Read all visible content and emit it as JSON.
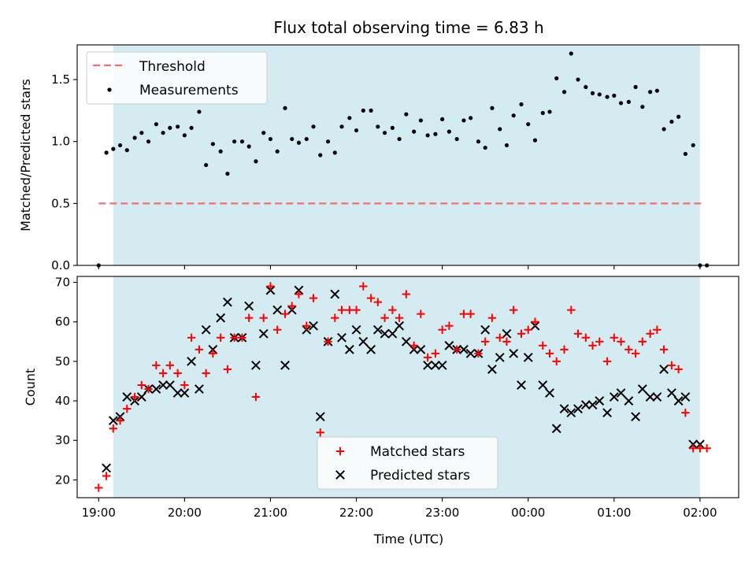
{
  "chart_data": [
    {
      "type": "scatter",
      "title": "Flux total observing time = 6.83 h",
      "xlabel": "",
      "ylabel": "Matched/Predicted stars",
      "ylim": [
        0,
        1.78
      ],
      "yticks": [
        0.0,
        0.5,
        1.0,
        1.5
      ],
      "ytick_labels": [
        "0.0",
        "0.5",
        "1.0",
        "1.5"
      ],
      "xlim": [
        18.75,
        26.45
      ],
      "xticks": [
        19,
        20,
        21,
        22,
        23,
        24,
        25,
        26
      ],
      "shaded_span": [
        19.17,
        26.0
      ],
      "shade_color": "#d4ebf1",
      "legend": {
        "placement": "upper-left",
        "entries": [
          "Threshold",
          "Measurements"
        ]
      },
      "threshold": {
        "name": "Threshold",
        "value": 0.5,
        "x_range": [
          19.0,
          26.05
        ],
        "color": "#f07070"
      },
      "series": [
        {
          "name": "Measurements",
          "color": "#000000",
          "x": [
            19.0,
            19.09,
            19.17,
            19.25,
            19.33,
            19.42,
            19.5,
            19.58,
            19.67,
            19.75,
            19.83,
            19.92,
            20.0,
            20.08,
            20.17,
            20.25,
            20.33,
            20.42,
            20.5,
            20.58,
            20.67,
            20.75,
            20.83,
            20.92,
            21.0,
            21.08,
            21.17,
            21.25,
            21.33,
            21.42,
            21.5,
            21.58,
            21.67,
            21.75,
            21.83,
            21.92,
            22.0,
            22.08,
            22.17,
            22.25,
            22.33,
            22.42,
            22.5,
            22.58,
            22.67,
            22.75,
            22.83,
            22.92,
            23.0,
            23.08,
            23.17,
            23.25,
            23.33,
            23.42,
            23.5,
            23.58,
            23.67,
            23.75,
            23.83,
            23.92,
            24.0,
            24.08,
            24.17,
            24.25,
            24.33,
            24.42,
            24.5,
            24.58,
            24.67,
            24.75,
            24.83,
            24.92,
            25.0,
            25.08,
            25.17,
            25.25,
            25.33,
            25.42,
            25.5,
            25.58,
            25.67,
            25.75,
            25.83,
            25.92,
            26.0,
            26.08
          ],
          "y": [
            0.0,
            0.91,
            0.94,
            0.97,
            0.93,
            1.03,
            1.07,
            1.0,
            1.14,
            1.07,
            1.11,
            1.12,
            1.05,
            1.11,
            1.24,
            0.81,
            0.98,
            0.92,
            0.74,
            1.0,
            1.0,
            0.96,
            0.84,
            1.07,
            1.02,
            0.92,
            1.27,
            1.02,
            0.99,
            1.02,
            1.12,
            0.89,
            1.0,
            0.91,
            1.12,
            1.19,
            1.09,
            1.25,
            1.25,
            1.12,
            1.07,
            1.11,
            1.02,
            1.22,
            1.08,
            1.17,
            1.05,
            1.06,
            1.18,
            1.08,
            1.02,
            1.17,
            1.19,
            1.0,
            0.95,
            1.27,
            1.1,
            0.97,
            1.21,
            1.3,
            1.14,
            1.01,
            1.23,
            1.24,
            1.51,
            1.4,
            1.71,
            1.5,
            1.44,
            1.39,
            1.38,
            1.36,
            1.37,
            1.31,
            1.32,
            1.44,
            1.28,
            1.4,
            1.41,
            1.1,
            1.16,
            1.2,
            0.9,
            0.97,
            0.0,
            0.0
          ]
        }
      ]
    },
    {
      "type": "scatter",
      "title": "",
      "xlabel": "Time (UTC)",
      "ylabel": "Count",
      "ylim": [
        15.5,
        71.5
      ],
      "yticks": [
        20,
        30,
        40,
        50,
        60,
        70
      ],
      "ytick_labels": [
        "20",
        "30",
        "40",
        "50",
        "60",
        "70"
      ],
      "xlim": [
        18.75,
        26.45
      ],
      "xticks": [
        19,
        20,
        21,
        22,
        23,
        24,
        25,
        26
      ],
      "xtick_labels": [
        "19:00",
        "20:00",
        "21:00",
        "22:00",
        "23:00",
        "00:00",
        "01:00",
        "02:00"
      ],
      "shaded_span": [
        19.17,
        26.0
      ],
      "shade_color": "#d4ebf1",
      "legend": {
        "placement": "lower-center",
        "entries": [
          "Matched stars",
          "Predicted stars"
        ]
      },
      "series": [
        {
          "name": "Matched stars",
          "marker": "plus",
          "color": "#ff0000",
          "x": [
            19.0,
            19.09,
            19.17,
            19.25,
            19.33,
            19.42,
            19.5,
            19.58,
            19.67,
            19.75,
            19.83,
            19.92,
            20.0,
            20.08,
            20.17,
            20.25,
            20.33,
            20.42,
            20.5,
            20.58,
            20.67,
            20.75,
            20.83,
            20.92,
            21.0,
            21.08,
            21.17,
            21.25,
            21.33,
            21.42,
            21.5,
            21.58,
            21.67,
            21.75,
            21.83,
            21.92,
            22.0,
            22.08,
            22.17,
            22.25,
            22.33,
            22.42,
            22.5,
            22.58,
            22.67,
            22.75,
            22.83,
            22.92,
            23.0,
            23.08,
            23.17,
            23.25,
            23.33,
            23.42,
            23.5,
            23.58,
            23.67,
            23.75,
            23.83,
            23.92,
            24.0,
            24.08,
            24.17,
            24.25,
            24.33,
            24.42,
            24.5,
            24.58,
            24.67,
            24.75,
            24.83,
            24.92,
            25.0,
            25.08,
            25.17,
            25.25,
            25.33,
            25.42,
            25.5,
            25.58,
            25.67,
            25.75,
            25.83,
            25.92,
            26.0,
            26.08
          ],
          "y": [
            18,
            21,
            33,
            35,
            38,
            41,
            44,
            43,
            49,
            47,
            49,
            47,
            44,
            56,
            53,
            47,
            52,
            56,
            48,
            56,
            56,
            61,
            41,
            61,
            69,
            58,
            62,
            64,
            67,
            59,
            66,
            32,
            55,
            61,
            63,
            63,
            63,
            69,
            66,
            65,
            61,
            63,
            61,
            67,
            54,
            62,
            51,
            52,
            58,
            59,
            53,
            62,
            62,
            52,
            55,
            61,
            56,
            55,
            63,
            57,
            58,
            60,
            54,
            52,
            50,
            53,
            63,
            57,
            56,
            54,
            55,
            50,
            56,
            55,
            53,
            52,
            55,
            57,
            58,
            53,
            49,
            48,
            37,
            28,
            28,
            28
          ]
        },
        {
          "name": "Predicted stars",
          "marker": "x",
          "color": "#000000",
          "x": [
            19.09,
            19.17,
            19.25,
            19.33,
            19.42,
            19.5,
            19.58,
            19.67,
            19.75,
            19.83,
            19.92,
            20.0,
            20.08,
            20.17,
            20.25,
            20.33,
            20.42,
            20.5,
            20.58,
            20.67,
            20.75,
            20.83,
            20.92,
            21.0,
            21.08,
            21.17,
            21.25,
            21.33,
            21.42,
            21.5,
            21.58,
            21.67,
            21.75,
            21.83,
            21.92,
            22.0,
            22.08,
            22.17,
            22.25,
            22.33,
            22.42,
            22.5,
            22.58,
            22.67,
            22.75,
            22.83,
            22.92,
            23.0,
            23.08,
            23.17,
            23.25,
            23.33,
            23.42,
            23.5,
            23.58,
            23.67,
            23.75,
            23.83,
            23.92,
            24.0,
            24.08,
            24.17,
            24.25,
            24.33,
            24.42,
            24.5,
            24.58,
            24.67,
            24.75,
            24.83,
            24.92,
            25.0,
            25.08,
            25.17,
            25.25,
            25.33,
            25.42,
            25.5,
            25.58,
            25.67,
            25.75,
            25.83,
            25.92,
            26.0
          ],
          "y": [
            23,
            35,
            36,
            41,
            40,
            41,
            43,
            43,
            44,
            44,
            42,
            42,
            50,
            43,
            58,
            53,
            61,
            65,
            56,
            56,
            64,
            49,
            57,
            68,
            63,
            49,
            63,
            68,
            58,
            59,
            36,
            55,
            67,
            56,
            53,
            58,
            55,
            53,
            58,
            57,
            57,
            59,
            55,
            53,
            53,
            49,
            49,
            49,
            54,
            53,
            53,
            52,
            52,
            58,
            48,
            51,
            57,
            52,
            44,
            51,
            59,
            44,
            42,
            33,
            38,
            37,
            38,
            39,
            39,
            40,
            37,
            41,
            42,
            40,
            36,
            43,
            41,
            41,
            48,
            42,
            40,
            41,
            29,
            29
          ]
        }
      ]
    }
  ]
}
